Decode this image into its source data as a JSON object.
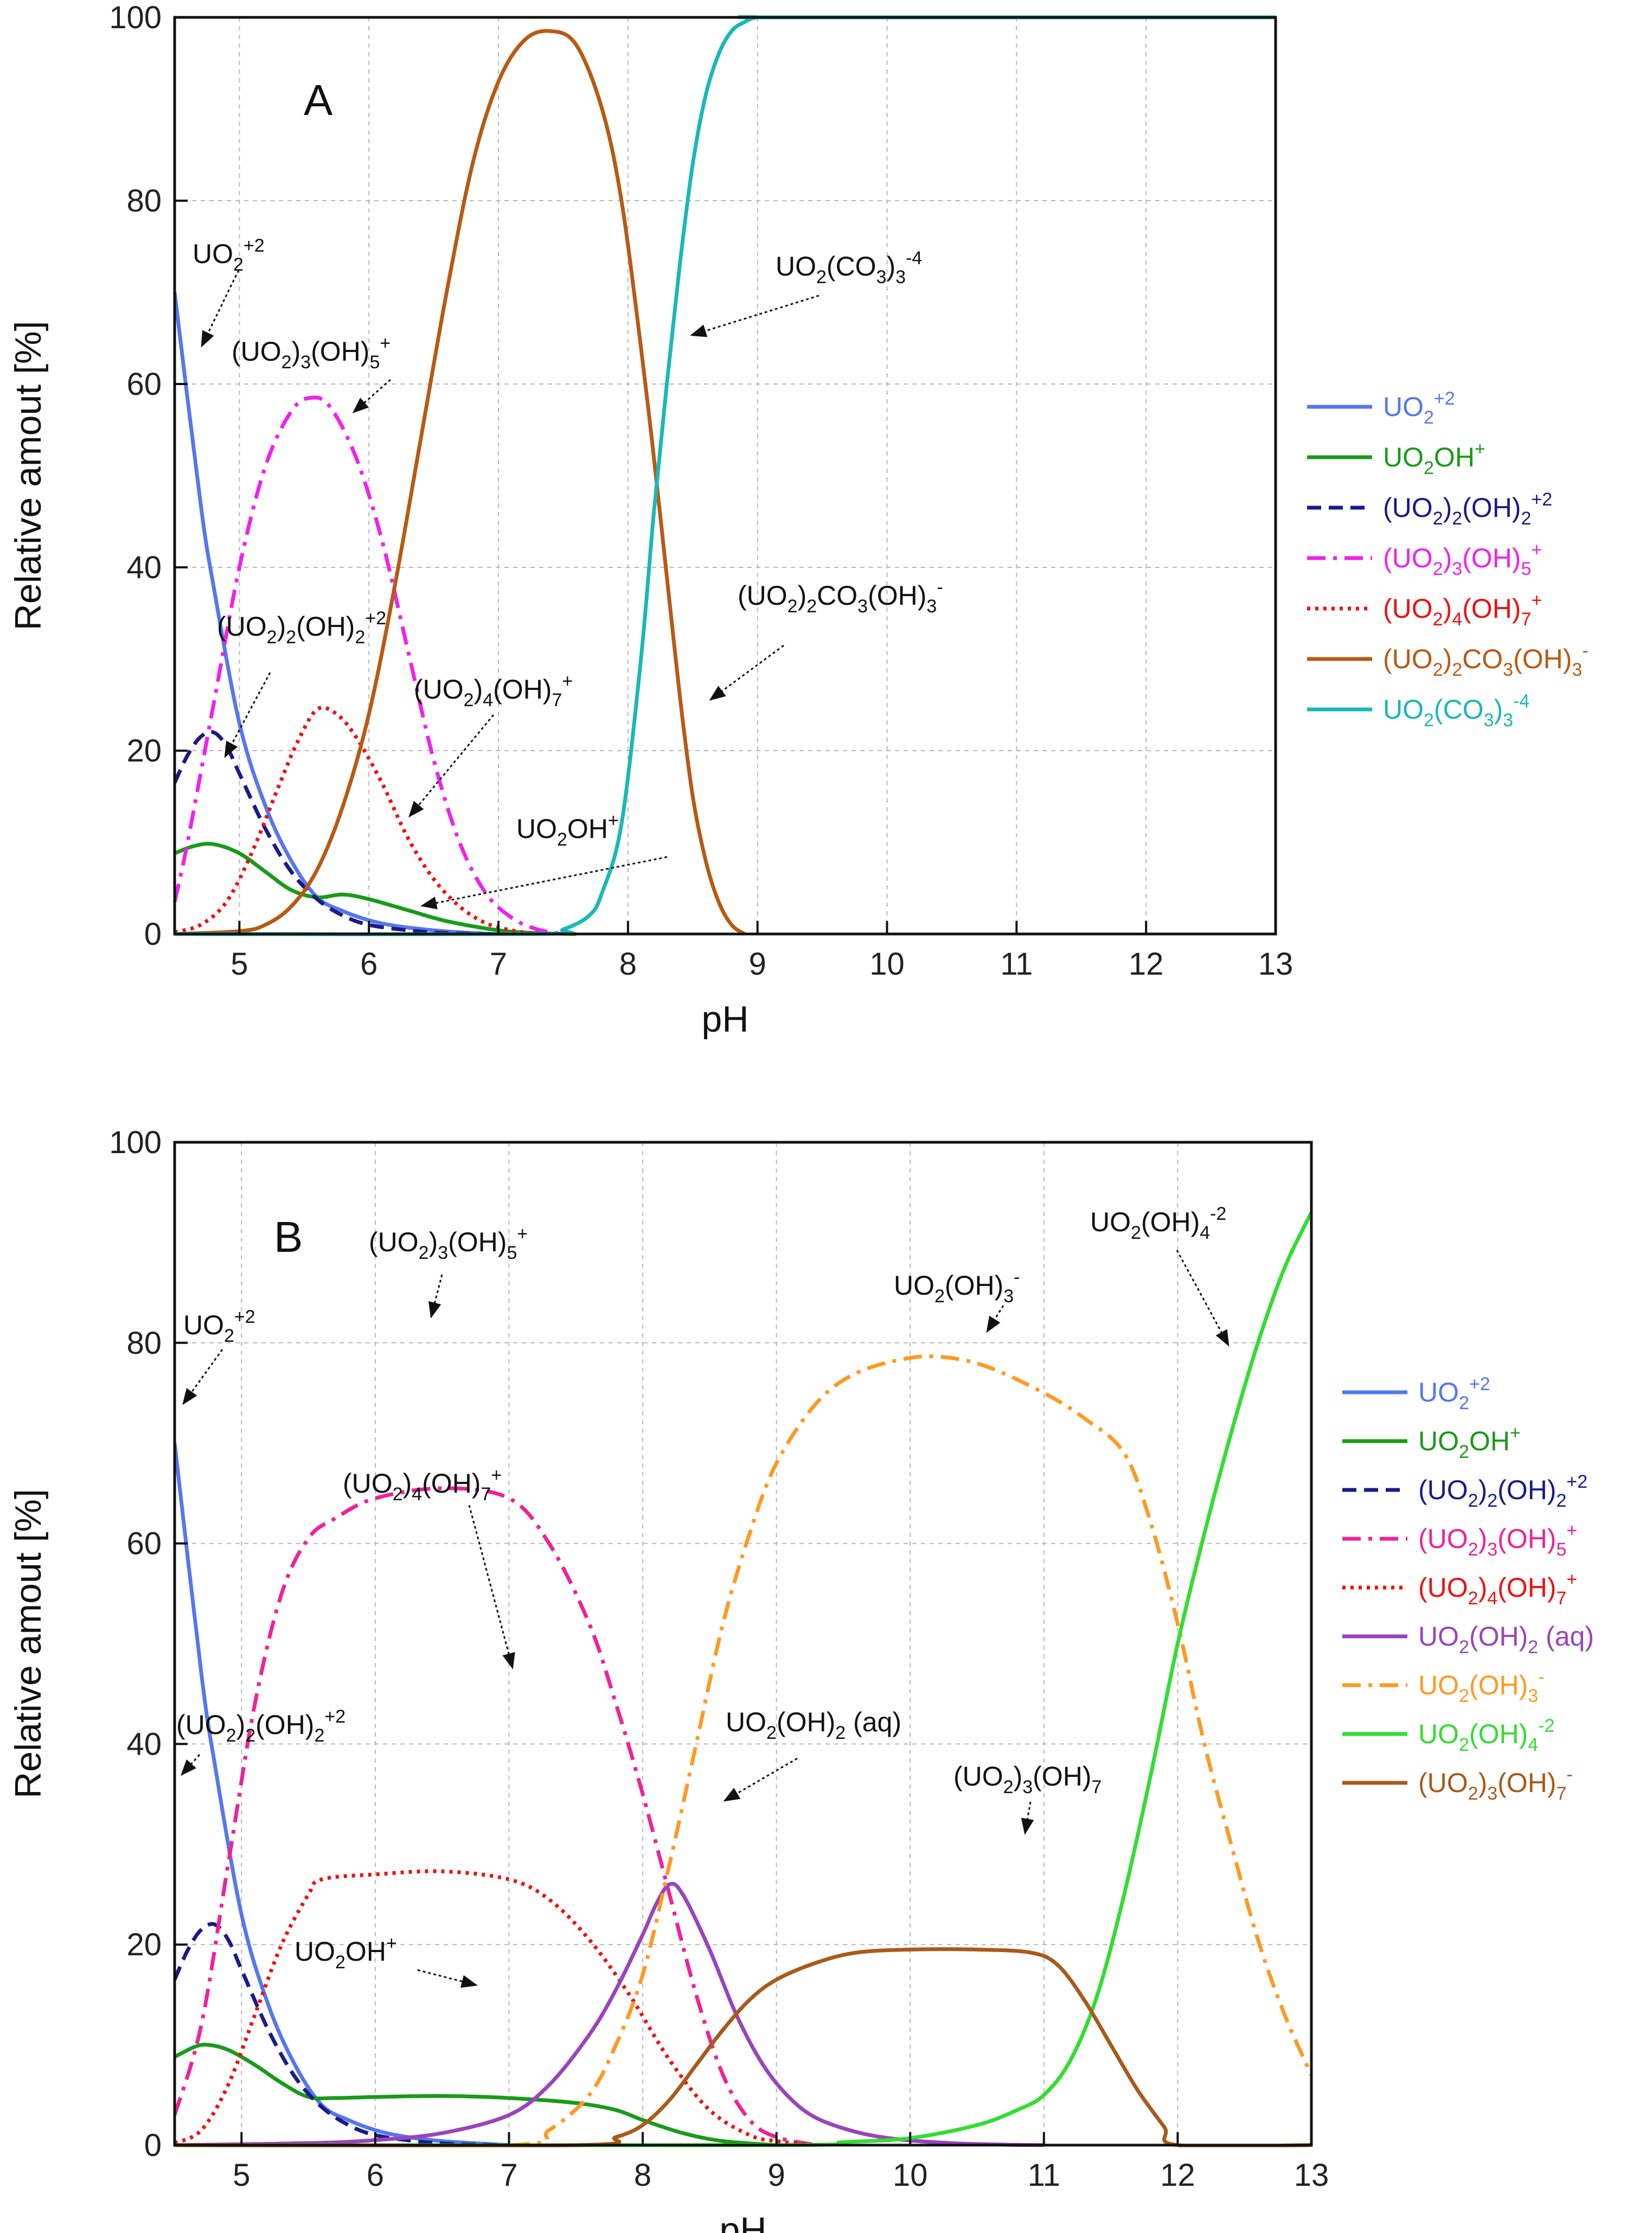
{
  "chart_data": [
    {
      "type": "line",
      "panel": "A",
      "xlabel": "pH",
      "ylabel": "Relative amout [%]",
      "xlim": [
        4.5,
        13
      ],
      "ylim": [
        0,
        100
      ],
      "xticks": [
        5,
        6,
        7,
        8,
        9,
        10,
        11,
        12,
        13
      ],
      "yticks": [
        0,
        20,
        40,
        60,
        80,
        100
      ],
      "grid": true,
      "legend_position": "right",
      "series": [
        {
          "name": "UO₂⁺²",
          "color": "#5577ee",
          "dash": "solid",
          "x": [
            4.5,
            4.7,
            4.8,
            5.0,
            5.2,
            5.4,
            5.6,
            5.8,
            6.0,
            6.2,
            6.5,
            6.8,
            7.0
          ],
          "y": [
            70,
            47,
            38,
            23,
            14,
            8,
            4,
            2.5,
            1.5,
            0.9,
            0.4,
            0.1,
            0
          ]
        },
        {
          "name": "UO₂OH⁺",
          "color": "#1a9a1a",
          "dash": "solid",
          "x": [
            4.5,
            4.65,
            4.8,
            5.0,
            5.2,
            5.4,
            5.6,
            5.8,
            6.0,
            6.3,
            6.6,
            7.0,
            7.3,
            7.6
          ],
          "y": [
            8.8,
            9.6,
            9.8,
            8.8,
            6.8,
            4.8,
            4.0,
            4.3,
            3.8,
            2.6,
            1.4,
            0.4,
            0.1,
            0
          ]
        },
        {
          "name": "(UO₂)₂(OH)₂⁺²",
          "color": "#1a1a88",
          "dash": "dash",
          "x": [
            4.5,
            4.6,
            4.7,
            4.8,
            4.9,
            5.0,
            5.2,
            5.4,
            5.6,
            5.8,
            6.0,
            6.3,
            6.6,
            7.0
          ],
          "y": [
            16.5,
            19.5,
            21.5,
            22,
            20.5,
            17.5,
            11.5,
            6.8,
            3.8,
            2.0,
            1.0,
            0.4,
            0.1,
            0
          ]
        },
        {
          "name": "(UO₂)₃(OH)₅⁺",
          "color": "#ee22ee",
          "dash": "dashdot",
          "x": [
            4.5,
            4.6,
            4.8,
            5.0,
            5.2,
            5.4,
            5.55,
            5.7,
            5.9,
            6.1,
            6.3,
            6.5,
            6.7,
            6.9,
            7.1,
            7.3,
            7.5
          ],
          "y": [
            3.5,
            10,
            25,
            40,
            51,
            57,
            58.5,
            57.5,
            52,
            43,
            31,
            19,
            10,
            4.5,
            1.8,
            0.5,
            0
          ]
        },
        {
          "name": "(UO₂)₄(OH)₇⁺",
          "color": "#ee1111",
          "dash": "dot",
          "x": [
            4.5,
            4.7,
            4.9,
            5.1,
            5.3,
            5.45,
            5.6,
            5.75,
            5.9,
            6.1,
            6.3,
            6.5,
            6.7,
            6.9,
            7.1,
            7.3
          ],
          "y": [
            0.2,
            1.0,
            3.5,
            9,
            16,
            21,
            24.5,
            24,
            21.5,
            16.5,
            10.5,
            6,
            3,
            1.2,
            0.4,
            0
          ]
        },
        {
          "name": "(UO₂)₂CO₃(OH)₃⁻",
          "color": "#b85a14",
          "dash": "solid",
          "x": [
            4.5,
            5.0,
            5.2,
            5.4,
            5.6,
            5.8,
            6.0,
            6.2,
            6.4,
            6.6,
            6.8,
            7.0,
            7.2,
            7.4,
            7.6,
            7.8,
            7.95,
            8.1,
            8.2,
            8.3,
            8.4,
            8.5,
            8.6,
            8.7,
            8.8,
            8.9
          ],
          "y": [
            0,
            0.3,
            1,
            3,
            7,
            14,
            24,
            38,
            54,
            70,
            84,
            93,
            97.5,
            98.5,
            97,
            90,
            80,
            64,
            52,
            39,
            26,
            15,
            8,
            3.5,
            1,
            0
          ]
        },
        {
          "name": "UO₂(CO₃)₃⁻⁴",
          "color": "#1ab8b8",
          "dash": "solid",
          "x": [
            4.5,
            7.3,
            7.5,
            7.7,
            7.8,
            7.95,
            8.1,
            8.2,
            8.3,
            8.4,
            8.5,
            8.6,
            8.7,
            8.8,
            8.9,
            9.0,
            9.2,
            13.0
          ],
          "y": [
            0,
            0,
            0.5,
            2,
            4.5,
            12,
            30,
            46,
            60,
            73,
            84,
            91.5,
            96,
            98.5,
            99.5,
            100,
            100,
            100
          ]
        }
      ],
      "annotations": [
        "A",
        "UO₂⁺²",
        "(UO₂)₃(OH)₅⁺",
        "UO₂(CO₃)₃⁻⁴",
        "(UO₂)₂(OH)₂⁺²",
        "(UO₂)₄(OH)₇⁺",
        "(UO₂)₂CO₃(OH)₃⁻",
        "UO₂OH⁺"
      ]
    },
    {
      "type": "line",
      "panel": "B",
      "xlabel": "pH",
      "ylabel": "Relative amout [%]",
      "xlim": [
        4.5,
        13
      ],
      "ylim": [
        0,
        100
      ],
      "xticks": [
        5,
        6,
        7,
        8,
        9,
        10,
        11,
        12,
        13
      ],
      "yticks": [
        0,
        20,
        40,
        60,
        80,
        100
      ],
      "grid": true,
      "legend_position": "right",
      "series": [
        {
          "name": "UO₂⁺²",
          "color": "#5577ee",
          "dash": "solid",
          "x": [
            4.5,
            4.7,
            4.8,
            5.0,
            5.2,
            5.4,
            5.6,
            5.8,
            6.0,
            6.2,
            6.5,
            7.0
          ],
          "y": [
            70,
            47,
            38,
            23,
            14,
            8,
            4,
            2.5,
            1.5,
            0.9,
            0.4,
            0
          ]
        },
        {
          "name": "UO₂OH⁺",
          "color": "#1a9a1a",
          "dash": "solid",
          "x": [
            4.5,
            4.65,
            4.75,
            4.9,
            5.1,
            5.3,
            5.5,
            5.7,
            6.0,
            6.5,
            7.0,
            7.5,
            7.8,
            8.0,
            8.3,
            8.6,
            9.0
          ],
          "y": [
            8.8,
            9.8,
            10,
            9.5,
            8,
            6.2,
            4.8,
            4.7,
            4.8,
            4.9,
            4.7,
            4.2,
            3.5,
            2.5,
            1.2,
            0.4,
            0
          ]
        },
        {
          "name": "(UO₂)₂(OH)₂⁺²",
          "color": "#1a1a88",
          "dash": "dash",
          "x": [
            4.5,
            4.6,
            4.7,
            4.8,
            4.9,
            5.0,
            5.2,
            5.4,
            5.6,
            5.8,
            6.0,
            6.3,
            6.6,
            7.0
          ],
          "y": [
            16.5,
            19.5,
            21.5,
            22,
            20.5,
            17.5,
            11.5,
            6.8,
            3.8,
            2.0,
            1.0,
            0.4,
            0.1,
            0
          ]
        },
        {
          "name": "(UO₂)₃(OH)₅⁺",
          "color": "#ee2299",
          "dash": "dashdot",
          "x": [
            4.5,
            4.7,
            4.9,
            5.1,
            5.3,
            5.5,
            5.7,
            6.0,
            6.5,
            7.0,
            7.3,
            7.6,
            7.8,
            8.0,
            8.2,
            8.4,
            8.6,
            8.8,
            9.0,
            9.3
          ],
          "y": [
            3,
            12,
            28,
            44,
            55,
            60.5,
            62.5,
            64.5,
            65.5,
            64.5,
            60,
            52,
            44,
            35,
            25,
            15,
            7,
            2.5,
            0.8,
            0
          ]
        },
        {
          "name": "(UO₂)₄(OH)₇⁺",
          "color": "#ee1111",
          "dash": "dot",
          "x": [
            4.5,
            4.7,
            4.9,
            5.1,
            5.3,
            5.5,
            5.6,
            6.0,
            6.5,
            7.0,
            7.3,
            7.6,
            7.9,
            8.2,
            8.5,
            8.8,
            9.0,
            9.3
          ],
          "y": [
            0.2,
            1.5,
            6,
            13,
            20,
            25,
            26.5,
            27,
            27.3,
            26.5,
            24.5,
            20.5,
            15,
            8.5,
            3.5,
            1,
            0.4,
            0
          ]
        },
        {
          "name": "UO₂(OH)₂ (aq)",
          "color": "#9944bb",
          "dash": "solid",
          "x": [
            4.5,
            5.5,
            6.0,
            6.5,
            7.0,
            7.3,
            7.6,
            7.8,
            8.0,
            8.1,
            8.2,
            8.3,
            8.5,
            8.7,
            8.9,
            9.1,
            9.3,
            9.6,
            9.9,
            10.3,
            10.7,
            11.0
          ],
          "y": [
            0,
            0.2,
            0.5,
            1.2,
            3,
            6,
            11,
            15.5,
            21,
            24,
            26,
            25,
            19.5,
            13,
            8,
            4.7,
            2.7,
            1.3,
            0.6,
            0.2,
            0.05,
            0
          ]
        },
        {
          "name": "UO₂(OH)₃⁻",
          "color": "#ff9922",
          "dash": "dashdot",
          "x": [
            4.5,
            7.0,
            7.3,
            7.6,
            7.8,
            8.0,
            8.2,
            8.4,
            8.6,
            8.8,
            9.0,
            9.3,
            9.6,
            10.0,
            10.3,
            10.6,
            11.0,
            11.3,
            11.6,
            11.8,
            12.0,
            12.2,
            12.4,
            12.6,
            12.8,
            13.0
          ],
          "y": [
            0,
            0,
            1.5,
            5,
            10,
            17,
            28,
            40,
            52,
            61,
            68,
            74,
            77,
            78.5,
            78.5,
            77.5,
            75,
            72.5,
            69,
            62,
            52,
            40,
            30,
            20.5,
            13,
            7
          ]
        },
        {
          "name": "UO₂(OH)₄⁻²",
          "color": "#33dd33",
          "dash": "solid",
          "x": [
            4.5,
            9.0,
            9.5,
            10.0,
            10.5,
            10.8,
            11.0,
            11.2,
            11.4,
            11.6,
            11.8,
            12.0,
            12.2,
            12.4,
            12.6,
            12.8,
            13.0
          ],
          "y": [
            0,
            0,
            0.3,
            0.7,
            2,
            3.5,
            5,
            8.5,
            15,
            25,
            37,
            50,
            61,
            71,
            80,
            87.5,
            93
          ]
        },
        {
          "name": "(UO₂)₃(OH)₇⁻",
          "color": "#a85a1c",
          "dash": "solid",
          "x": [
            4.5,
            7.5,
            7.8,
            8.0,
            8.2,
            8.4,
            8.6,
            8.8,
            9.0,
            9.3,
            9.6,
            10.0,
            10.5,
            10.9,
            11.1,
            11.3,
            11.5,
            11.7,
            11.9,
            12.0,
            13.0
          ],
          "y": [
            0,
            0,
            0.8,
            2,
            4.5,
            8,
            11.5,
            14.5,
            16.5,
            18.2,
            19.2,
            19.5,
            19.5,
            19.2,
            18,
            14.5,
            10,
            5.5,
            1.8,
            0,
            0
          ]
        }
      ],
      "annotations": [
        "B",
        "UO₂⁺²",
        "(UO₂)₃(OH)₅⁺",
        "(UO₂)₄(OH)₇⁺",
        "(UO₂)₂(OH)₂⁺²",
        "UO₂OH⁺",
        "UO₂(OH)₂ (aq)",
        "(UO₂)₃(OH)₇",
        "UO₂(OH)₃⁻",
        "UO₂(OH)₄⁻²"
      ]
    }
  ]
}
